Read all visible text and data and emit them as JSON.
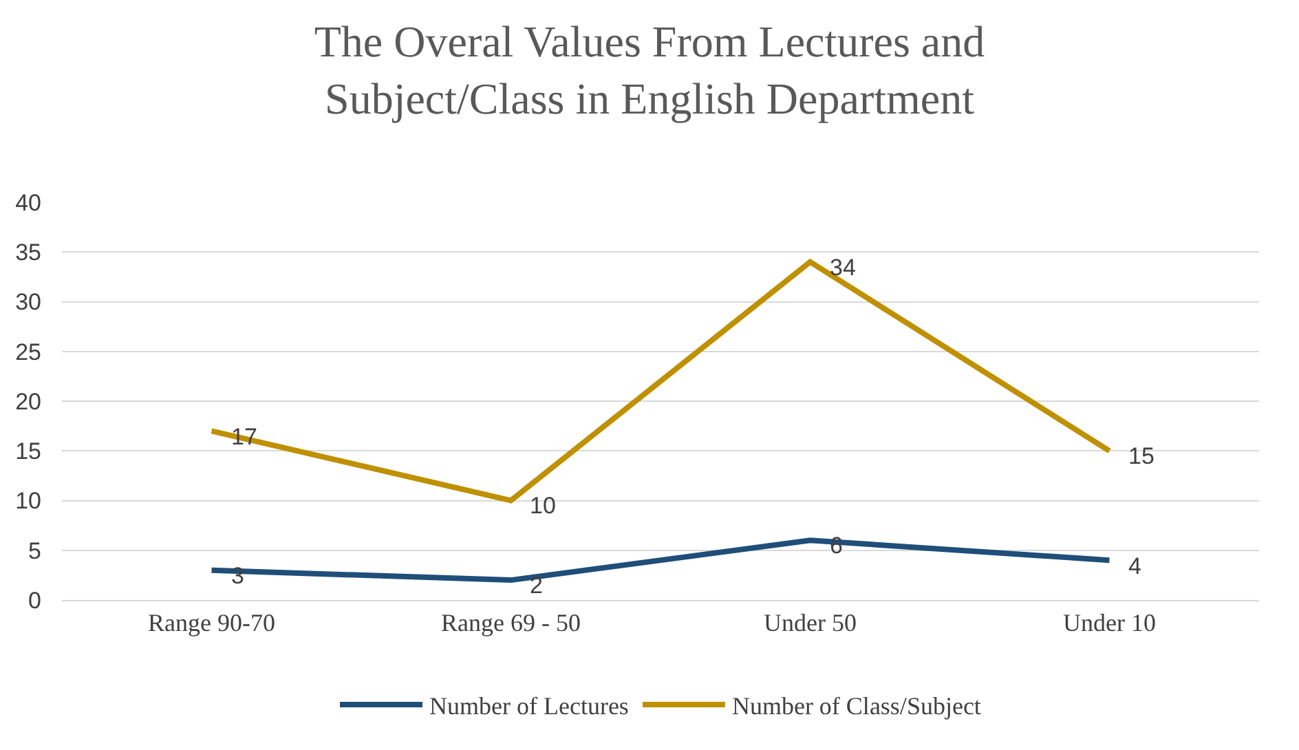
{
  "chart_data": {
    "type": "line",
    "title": "The Overal Values From Lectures and Subject/Class in English Department",
    "categories": [
      "Range 90-70",
      "Range 69 - 50",
      "Under 50",
      "Under 10"
    ],
    "series": [
      {
        "name": "Number of Lectures",
        "color": "#1f4e79",
        "values": [
          3,
          2,
          6,
          4
        ]
      },
      {
        "name": "Number of Class/Subject",
        "color": "#bf9000",
        "values": [
          17,
          10,
          34,
          15
        ]
      }
    ],
    "ylim": [
      0,
      40
    ],
    "yticks": [
      0,
      5,
      10,
      15,
      20,
      25,
      30,
      35,
      40
    ],
    "grid": "y",
    "legend": "bottom",
    "data_labels": true,
    "marker": "none",
    "line_style": "solid"
  }
}
